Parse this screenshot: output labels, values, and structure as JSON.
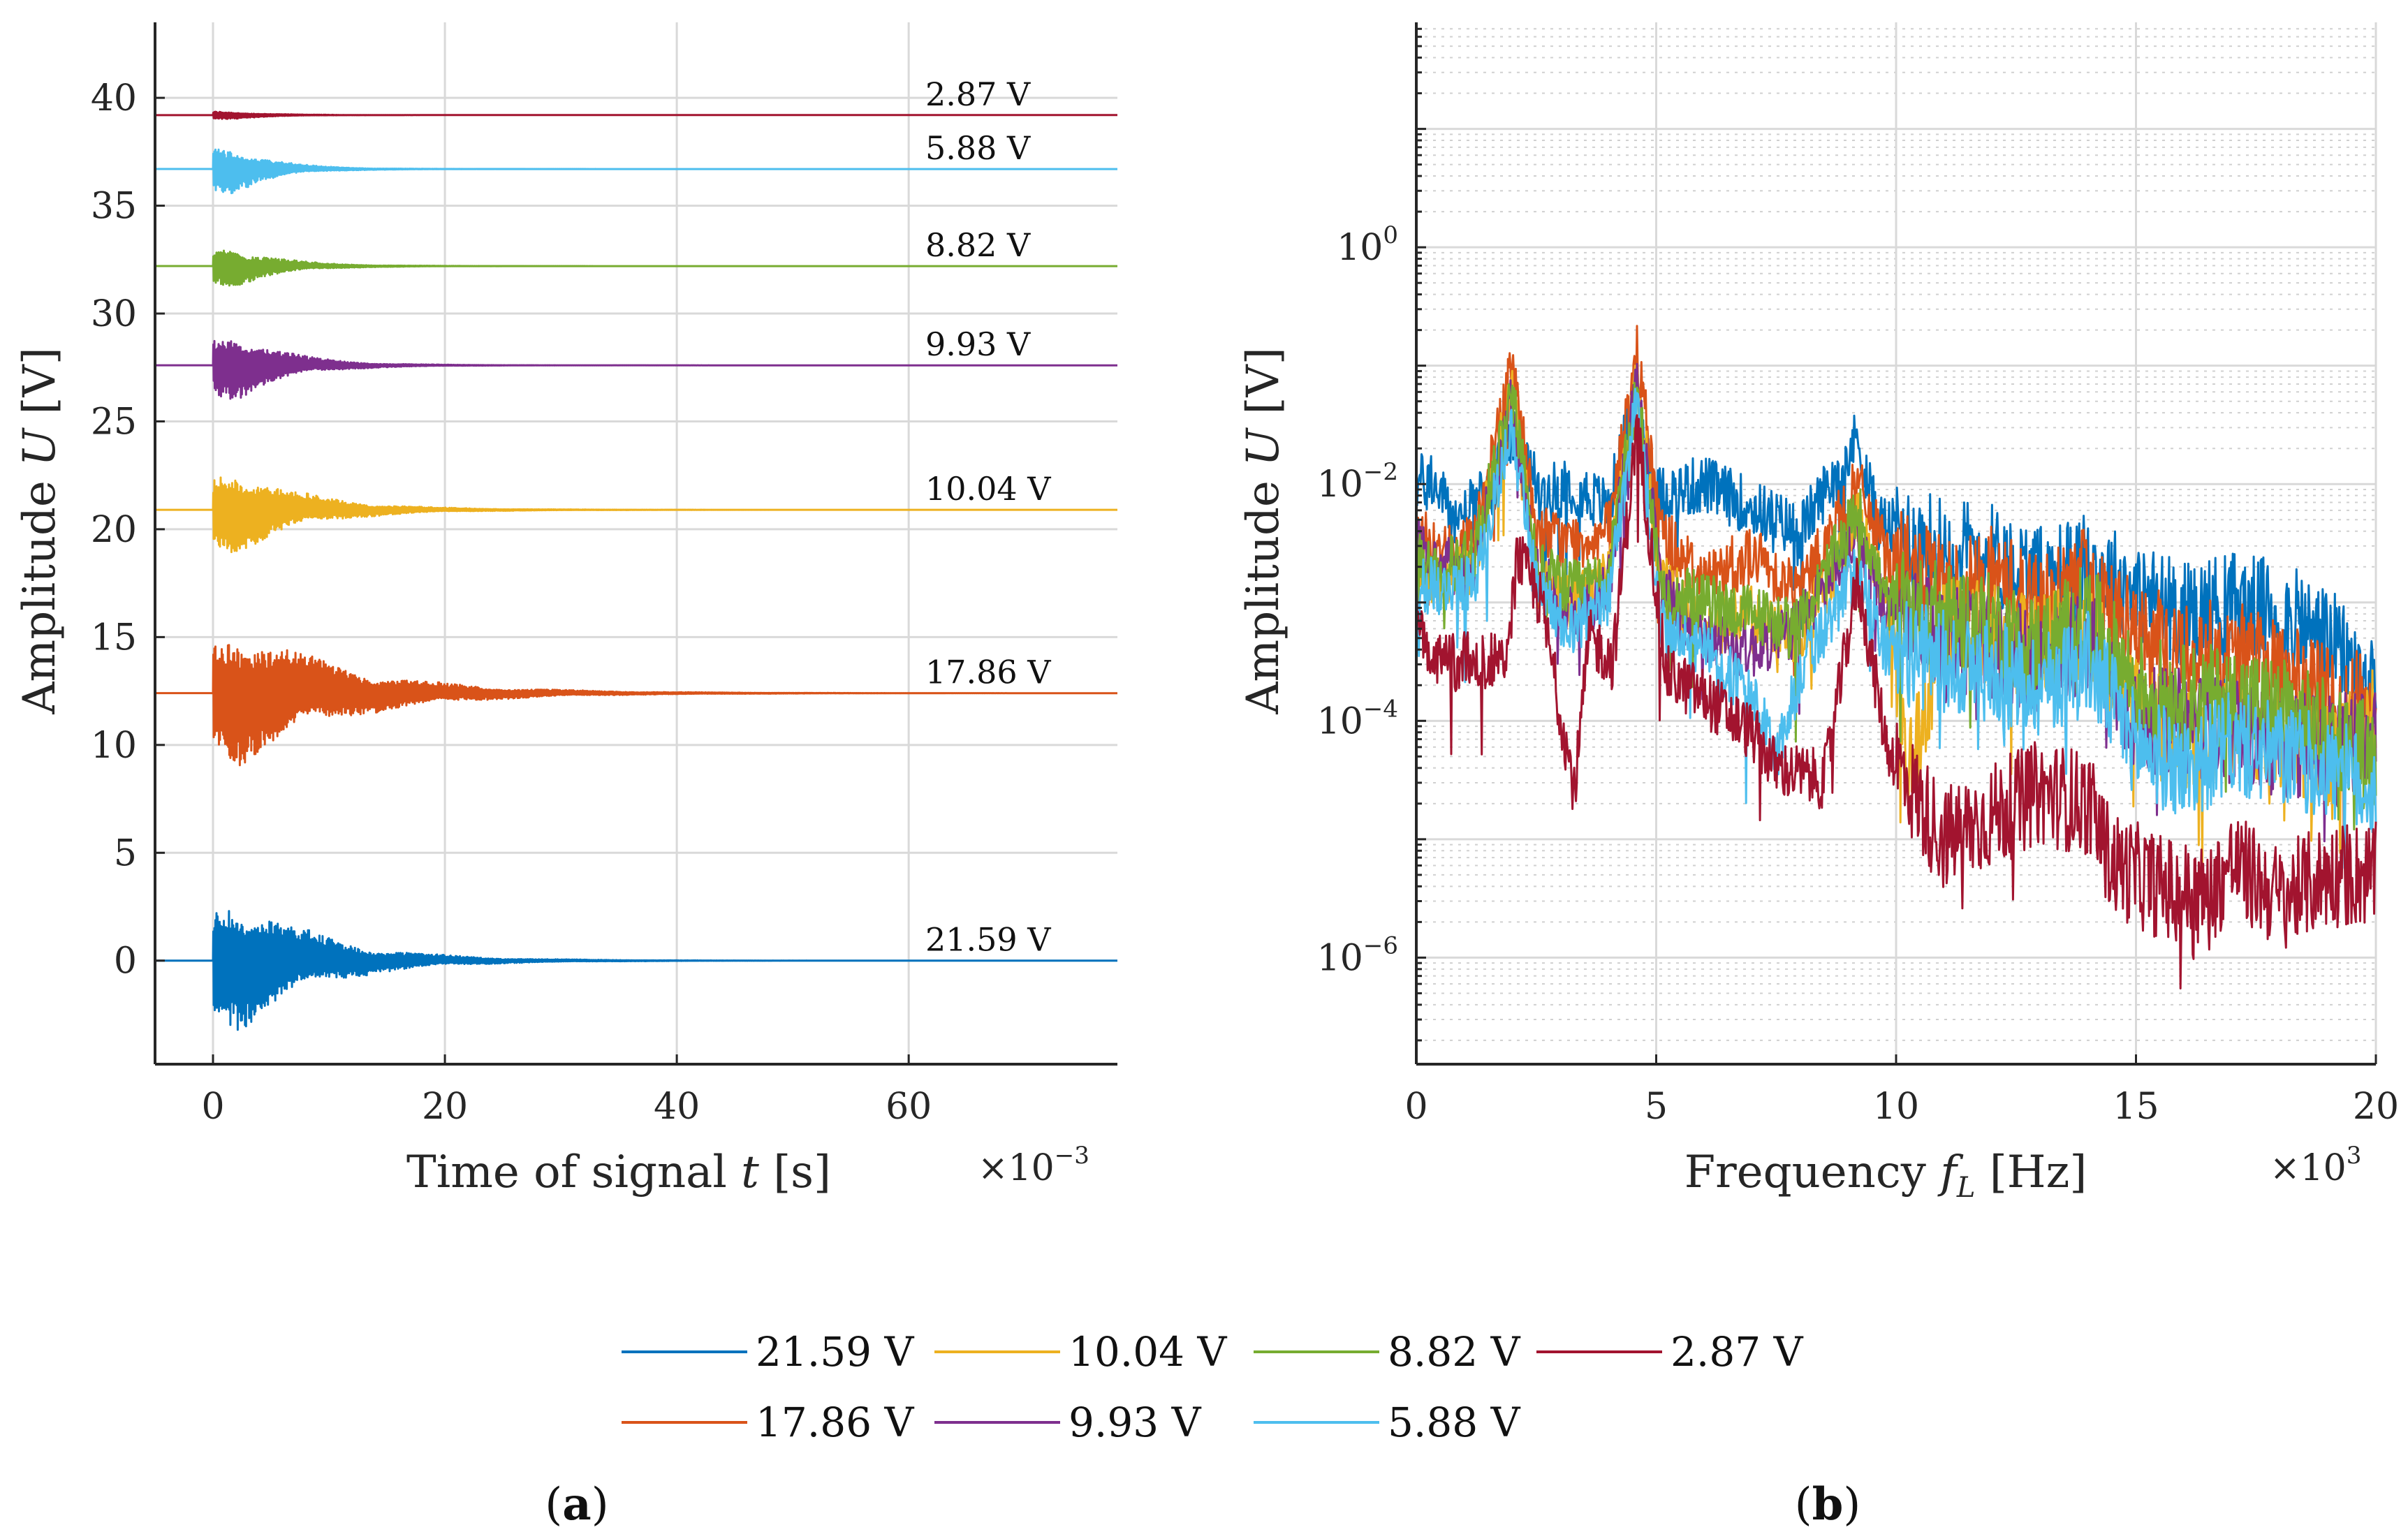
{
  "chart_data": [
    {
      "panel": "a",
      "type": "line",
      "subtitle_letter": "a",
      "xlabel": "Time of signal t [s]",
      "x_multiplier": "×10⁻³",
      "ylabel": "Amplitude U [V]",
      "xlim": [
        -5,
        78
      ],
      "ylim": [
        -4.8,
        43.5
      ],
      "xticks": [
        0,
        20,
        40,
        60
      ],
      "xtick_labels": [
        "0",
        "20",
        "40",
        "60"
      ],
      "yticks": [
        0,
        5,
        10,
        15,
        20,
        25,
        30,
        35,
        40
      ],
      "ytick_labels": [
        "0",
        "5",
        "10",
        "15",
        "20",
        "25",
        "30",
        "35",
        "40"
      ],
      "grid": true,
      "series": [
        {
          "name": "21.59 V",
          "offset": 0.0,
          "peak": 4.6,
          "decay_ms": 7.0,
          "color": "#0072BD",
          "label": "21.59 V"
        },
        {
          "name": "17.86 V",
          "offset": 12.4,
          "peak": 4.4,
          "decay_ms": 9.0,
          "color": "#D95319",
          "label": "17.86 V"
        },
        {
          "name": "10.04 V",
          "offset": 20.9,
          "peak": 3.0,
          "decay_ms": 6.0,
          "color": "#EDB120",
          "label": "10.04 V"
        },
        {
          "name": "9.93 V",
          "offset": 27.6,
          "peak": 2.6,
          "decay_ms": 4.5,
          "color": "#7E2F8E",
          "label": "9.93 V"
        },
        {
          "name": "8.82 V",
          "offset": 32.2,
          "peak": 1.6,
          "decay_ms": 4.0,
          "color": "#77AC30",
          "label": "8.82 V"
        },
        {
          "name": "5.88 V",
          "offset": 36.7,
          "peak": 2.0,
          "decay_ms": 3.5,
          "color": "#4DBEEE",
          "label": "5.88 V"
        },
        {
          "name": "2.87 V",
          "offset": 39.2,
          "peak": 0.35,
          "decay_ms": 3.0,
          "color": "#A2142F",
          "label": "2.87 V"
        }
      ]
    },
    {
      "panel": "b",
      "type": "line",
      "y_scale": "log",
      "subtitle_letter": "b",
      "xlabel": "Frequency f_L [Hz]",
      "x_multiplier": "×10³",
      "ylabel": "Amplitude U [V]",
      "xlim": [
        0,
        20
      ],
      "ylim_log10": [
        -6.9,
        1.9
      ],
      "xticks": [
        0,
        5,
        10,
        15,
        20
      ],
      "xtick_labels": [
        "0",
        "5",
        "10",
        "15",
        "20"
      ],
      "yticks_log10": [
        -6,
        -4,
        -2,
        0
      ],
      "ytick_labels": [
        "10",
        "10",
        "10",
        "10"
      ],
      "ytick_exponents": [
        "−6",
        "−4",
        "−2",
        "0"
      ],
      "grid": true,
      "series": [
        {
          "name": "21.59 V",
          "color": "#0072BD",
          "anchors": [
            [
              0,
              -2.0
            ],
            [
              0.3,
              -1.95
            ],
            [
              0.8,
              -2.3
            ],
            [
              1.5,
              -2.1
            ],
            [
              2.0,
              -1.6
            ],
            [
              2.6,
              -2.1
            ],
            [
              3.2,
              -2.0
            ],
            [
              4.0,
              -2.2
            ],
            [
              4.6,
              -1.2
            ],
            [
              5.0,
              -2.1
            ],
            [
              6.0,
              -2.0
            ],
            [
              7.0,
              -2.2
            ],
            [
              8.0,
              -2.4
            ],
            [
              9.2,
              -1.6
            ],
            [
              9.6,
              -2.3
            ],
            [
              10.5,
              -2.5
            ],
            [
              12,
              -2.6
            ],
            [
              13,
              -2.8
            ],
            [
              14,
              -2.7
            ],
            [
              15,
              -2.9
            ],
            [
              16,
              -3.1
            ],
            [
              17,
              -3.0
            ],
            [
              18,
              -3.1
            ],
            [
              19,
              -3.3
            ],
            [
              20,
              -3.8
            ]
          ]
        },
        {
          "name": "17.86 V",
          "color": "#D95319",
          "anchors": [
            [
              0,
              -2.4
            ],
            [
              0.5,
              -2.6
            ],
            [
              1.2,
              -2.5
            ],
            [
              2.0,
              -1.0
            ],
            [
              2.5,
              -2.4
            ],
            [
              3.2,
              -2.5
            ],
            [
              4.0,
              -2.4
            ],
            [
              4.6,
              -0.9
            ],
            [
              5.1,
              -2.4
            ],
            [
              6.0,
              -2.8
            ],
            [
              7.0,
              -2.6
            ],
            [
              8.0,
              -2.9
            ],
            [
              9.2,
              -2.0
            ],
            [
              9.8,
              -2.6
            ],
            [
              11,
              -2.9
            ],
            [
              12,
              -2.8
            ],
            [
              13,
              -3.0
            ],
            [
              14,
              -2.8
            ],
            [
              15,
              -3.3
            ],
            [
              16,
              -3.4
            ],
            [
              17,
              -3.4
            ],
            [
              18,
              -3.6
            ],
            [
              19,
              -3.8
            ],
            [
              20,
              -3.9
            ]
          ]
        },
        {
          "name": "10.04 V",
          "color": "#EDB120",
          "anchors": [
            [
              0,
              -2.6
            ],
            [
              0.5,
              -2.8
            ],
            [
              1.2,
              -2.7
            ],
            [
              2.0,
              -1.2
            ],
            [
              2.5,
              -2.8
            ],
            [
              3.2,
              -3.0
            ],
            [
              4.0,
              -2.8
            ],
            [
              4.6,
              -1.1
            ],
            [
              5.1,
              -2.8
            ],
            [
              6.0,
              -3.2
            ],
            [
              7.0,
              -3.1
            ],
            [
              8.0,
              -3.3
            ],
            [
              9.2,
              -2.3
            ],
            [
              9.8,
              -3.0
            ],
            [
              10.3,
              -4.4
            ],
            [
              11,
              -3.2
            ],
            [
              12,
              -3.3
            ],
            [
              13,
              -3.4
            ],
            [
              14,
              -3.2
            ],
            [
              15,
              -3.9
            ],
            [
              16,
              -4.2
            ],
            [
              17,
              -4.0
            ],
            [
              18,
              -4.1
            ],
            [
              19,
              -4.3
            ],
            [
              20,
              -4.0
            ]
          ]
        },
        {
          "name": "9.93 V",
          "color": "#7E2F8E",
          "anchors": [
            [
              0,
              -2.5
            ],
            [
              0.5,
              -2.7
            ],
            [
              1.2,
              -2.7
            ],
            [
              2.0,
              -1.3
            ],
            [
              2.5,
              -2.7
            ],
            [
              3.2,
              -3.1
            ],
            [
              4.0,
              -2.9
            ],
            [
              4.6,
              -1.1
            ],
            [
              5.1,
              -2.9
            ],
            [
              6.0,
              -3.3
            ],
            [
              7.0,
              -3.4
            ],
            [
              8.0,
              -3.2
            ],
            [
              9.2,
              -2.4
            ],
            [
              9.8,
              -3.1
            ],
            [
              11,
              -3.3
            ],
            [
              12,
              -3.4
            ],
            [
              13,
              -3.5
            ],
            [
              14,
              -3.3
            ],
            [
              15,
              -4.0
            ],
            [
              16,
              -4.0
            ],
            [
              17,
              -4.1
            ],
            [
              18,
              -4.2
            ],
            [
              19,
              -4.2
            ],
            [
              20,
              -4.1
            ]
          ]
        },
        {
          "name": "8.82 V",
          "color": "#77AC30",
          "anchors": [
            [
              0,
              -2.6
            ],
            [
              0.5,
              -2.7
            ],
            [
              1.2,
              -2.6
            ],
            [
              2.0,
              -1.2
            ],
            [
              2.5,
              -2.7
            ],
            [
              3.2,
              -2.9
            ],
            [
              4.0,
              -2.8
            ],
            [
              4.6,
              -1.2
            ],
            [
              5.1,
              -2.9
            ],
            [
              6.0,
              -3.0
            ],
            [
              7.0,
              -3.1
            ],
            [
              8.0,
              -3.2
            ],
            [
              9.2,
              -2.2
            ],
            [
              9.8,
              -3.0
            ],
            [
              11,
              -3.1
            ],
            [
              12,
              -3.2
            ],
            [
              13,
              -3.4
            ],
            [
              14,
              -3.1
            ],
            [
              15,
              -3.7
            ],
            [
              16,
              -3.8
            ],
            [
              17,
              -3.8
            ],
            [
              18,
              -3.9
            ],
            [
              19,
              -4.1
            ],
            [
              20,
              -4.3
            ]
          ]
        },
        {
          "name": "5.88 V",
          "color": "#4DBEEE",
          "anchors": [
            [
              0,
              -2.8
            ],
            [
              0.5,
              -2.9
            ],
            [
              1.2,
              -2.8
            ],
            [
              2.0,
              -1.5
            ],
            [
              2.5,
              -2.9
            ],
            [
              3.2,
              -3.2
            ],
            [
              4.0,
              -3.0
            ],
            [
              4.6,
              -1.3
            ],
            [
              5.1,
              -3.2
            ],
            [
              6.0,
              -3.4
            ],
            [
              7.0,
              -3.8
            ],
            [
              7.5,
              -4.3
            ],
            [
              8.0,
              -3.6
            ],
            [
              9.2,
              -2.7
            ],
            [
              9.8,
              -3.4
            ],
            [
              11,
              -3.5
            ],
            [
              12,
              -3.6
            ],
            [
              13,
              -3.7
            ],
            [
              14,
              -3.5
            ],
            [
              15,
              -4.2
            ],
            [
              16,
              -4.4
            ],
            [
              17,
              -4.2
            ],
            [
              18,
              -4.3
            ],
            [
              19,
              -4.4
            ],
            [
              20,
              -4.6
            ]
          ]
        },
        {
          "name": "2.87 V",
          "color": "#A2142F",
          "anchors": [
            [
              0,
              -2.8
            ],
            [
              0.2,
              -3.5
            ],
            [
              1.0,
              -3.5
            ],
            [
              1.9,
              -3.5
            ],
            [
              2.1,
              -2.6
            ],
            [
              2.6,
              -3.0
            ],
            [
              3.3,
              -4.6
            ],
            [
              3.6,
              -3.3
            ],
            [
              4.1,
              -3.5
            ],
            [
              4.6,
              -1.5
            ],
            [
              5.2,
              -3.6
            ],
            [
              6.0,
              -3.8
            ],
            [
              7.0,
              -4.1
            ],
            [
              7.5,
              -4.4
            ],
            [
              8.5,
              -4.5
            ],
            [
              9.2,
              -2.8
            ],
            [
              9.8,
              -4.2
            ],
            [
              10.5,
              -4.7
            ],
            [
              11,
              -5.0
            ],
            [
              12,
              -4.8
            ],
            [
              13,
              -4.6
            ],
            [
              14,
              -4.7
            ],
            [
              14.5,
              -5.2
            ],
            [
              15.5,
              -5.4
            ],
            [
              16.5,
              -5.5
            ],
            [
              17,
              -5.2
            ],
            [
              18,
              -5.5
            ],
            [
              19,
              -5.3
            ],
            [
              20,
              -5.3
            ]
          ]
        }
      ]
    }
  ],
  "legend": [
    {
      "label": "21.59 V",
      "color": "#0072BD"
    },
    {
      "label": "10.04 V",
      "color": "#EDB120"
    },
    {
      "label": "8.82 V",
      "color": "#77AC30"
    },
    {
      "label": "2.87 V",
      "color": "#A2142F"
    },
    {
      "label": "17.86 V",
      "color": "#D95319"
    },
    {
      "label": "9.93 V",
      "color": "#7E2F8E"
    },
    {
      "label": "5.88 V",
      "color": "#4DBEEE"
    }
  ],
  "left_xlabel_parts": [
    "Time of signal",
    "t",
    "[s]"
  ],
  "left_ylabel_parts": [
    "Amplitude",
    "U",
    "[V]"
  ],
  "right_xlabel_parts": [
    "Frequency",
    "f",
    "L",
    "[Hz]"
  ],
  "right_ylabel_parts": [
    "Amplitude",
    "U",
    "[V]"
  ],
  "left_multiplier_base": "×10",
  "left_multiplier_exp": "−3",
  "right_multiplier_base": "×10",
  "right_multiplier_exp": "3",
  "paren_open": "(",
  "paren_close": ")"
}
